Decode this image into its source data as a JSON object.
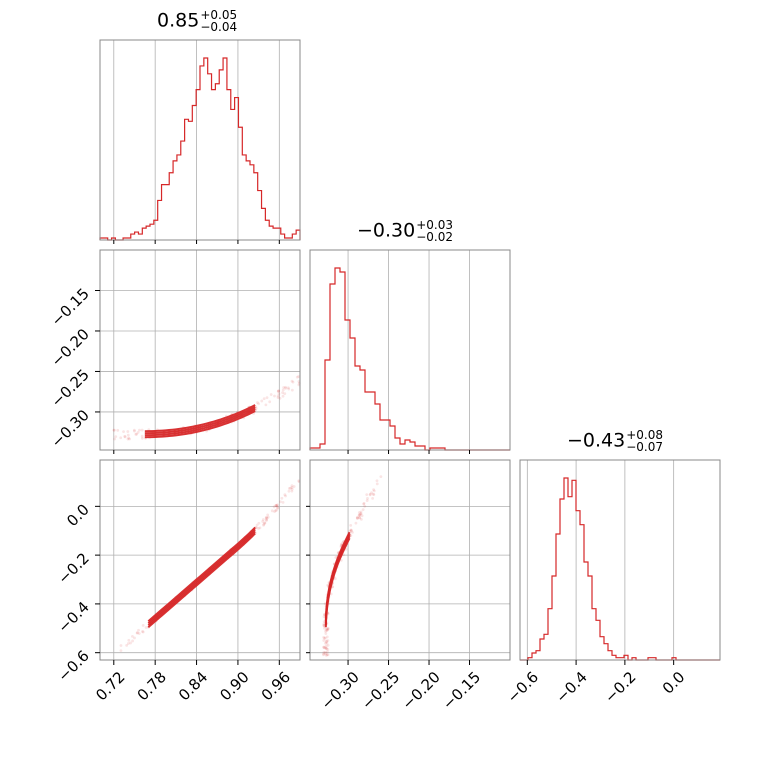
{
  "chart_data": {
    "type": "corner",
    "color": "#d62728",
    "grid": true,
    "parameters": [
      {
        "summary": {
          "median": "0.85",
          "plus": "+0.05",
          "minus": "−0.04"
        },
        "ticks": [
          0.72,
          0.78,
          0.84,
          0.9,
          0.96
        ],
        "tick_labels": [
          "0.72",
          "0.78",
          "0.84",
          "0.90",
          "0.96"
        ],
        "range": [
          0.7,
          0.99
        ],
        "hist_counts": [
          1,
          1,
          0,
          1,
          0,
          0,
          1,
          1,
          3,
          4,
          3,
          6,
          7,
          8,
          10,
          20,
          28,
          28,
          34,
          40,
          43,
          50,
          61,
          60,
          68,
          76,
          88,
          92,
          84,
          76,
          79,
          86,
          92,
          76,
          66,
          72,
          57,
          43,
          40,
          38,
          34,
          25,
          16,
          10,
          7,
          6,
          6,
          3,
          1,
          1,
          3,
          5
        ]
      },
      {
        "summary": {
          "median": "−0.30",
          "plus": "+0.03",
          "minus": "−0.02"
        },
        "ticks": [
          -0.3,
          -0.25,
          -0.2,
          -0.15
        ],
        "tick_labels": [
          "−0.30",
          "−0.25",
          "−0.20",
          "−0.15"
        ],
        "range": [
          -0.347,
          -0.1
        ],
        "hist_counts": [
          1,
          1,
          3,
          45,
          83,
          91,
          89,
          65,
          56,
          42,
          40,
          29,
          29,
          23,
          15,
          15,
          12,
          6,
          3,
          5,
          4,
          2,
          2,
          0,
          1,
          1,
          1,
          0,
          0,
          0,
          0,
          0,
          0,
          0,
          0,
          0,
          0,
          0,
          0,
          0
        ]
      },
      {
        "summary": {
          "median": "−0.43",
          "plus": "+0.08",
          "minus": "−0.07"
        },
        "ticks": [
          -0.6,
          -0.4,
          -0.2,
          0.0
        ],
        "tick_labels": [
          "−0.6",
          "−0.4",
          "−0.2",
          "0.0"
        ],
        "range": [
          -0.63,
          0.19
        ],
        "hist_counts": [
          0,
          0,
          1,
          3,
          4,
          9,
          11,
          22,
          36,
          54,
          69,
          78,
          70,
          77,
          64,
          58,
          42,
          36,
          22,
          17,
          10,
          7,
          4,
          2,
          1,
          1,
          2,
          0,
          1,
          0,
          0,
          0,
          1,
          1,
          0,
          0,
          0,
          0,
          1,
          0,
          0,
          0,
          0,
          0,
          0,
          0,
          0,
          0,
          0,
          0
        ]
      }
    ],
    "yaxis_ticks": {
      "row1": [
        "−0.15",
        "−0.20",
        "−0.25",
        "−0.30"
      ],
      "row2": [
        "0.0",
        "−0.2",
        "−0.4",
        "−0.6"
      ]
    }
  }
}
